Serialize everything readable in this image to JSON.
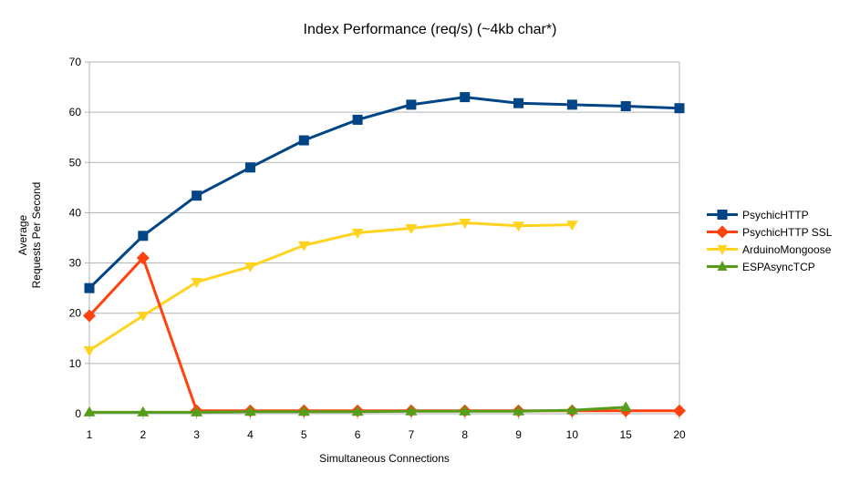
{
  "chart_data": {
    "type": "line",
    "title": "Index Performance (req/s) (~4kb char*)",
    "xlabel": "Simultaneous Connections",
    "ylabel": "Average\nRequests Per Second",
    "categories": [
      "1",
      "2",
      "3",
      "4",
      "5",
      "6",
      "7",
      "8",
      "9",
      "10",
      "15",
      "20"
    ],
    "y_ticks": [
      0,
      10,
      20,
      30,
      40,
      50,
      60,
      70
    ],
    "ylim": [
      0,
      70
    ],
    "grid": "horizontal",
    "legend_position": "right",
    "series": [
      {
        "name": "PsychicHTTP",
        "color": "#004586",
        "marker": "square",
        "values": [
          25,
          35.4,
          43.4,
          49,
          54.4,
          58.5,
          61.5,
          63,
          61.8,
          61.5,
          61.2,
          60.8
        ]
      },
      {
        "name": "PsychicHTTP SSL",
        "color": "#FF420E",
        "marker": "diamond",
        "values": [
          19.5,
          31,
          0.6,
          0.6,
          0.6,
          0.6,
          0.6,
          0.6,
          0.6,
          0.6,
          0.6,
          0.6
        ]
      },
      {
        "name": "ArduinoMongoose",
        "color": "#FFD320",
        "marker": "triangle-down",
        "values": [
          12.6,
          19.5,
          26.2,
          29.3,
          33.5,
          36,
          36.9,
          38,
          37.4,
          37.6,
          null,
          null
        ]
      },
      {
        "name": "ESPAsyncTCP",
        "color": "#579D1C",
        "marker": "triangle-up",
        "values": [
          0.3,
          0.3,
          0.3,
          0.4,
          0.4,
          0.4,
          0.5,
          0.5,
          0.5,
          0.7,
          1.3,
          null
        ]
      }
    ],
    "draw_order": [
      0,
      2,
      1,
      3
    ],
    "colors": {
      "grid": "#b3b3b3",
      "axis": "#b3b3b3",
      "text": "#000000",
      "background": "#ffffff"
    }
  }
}
